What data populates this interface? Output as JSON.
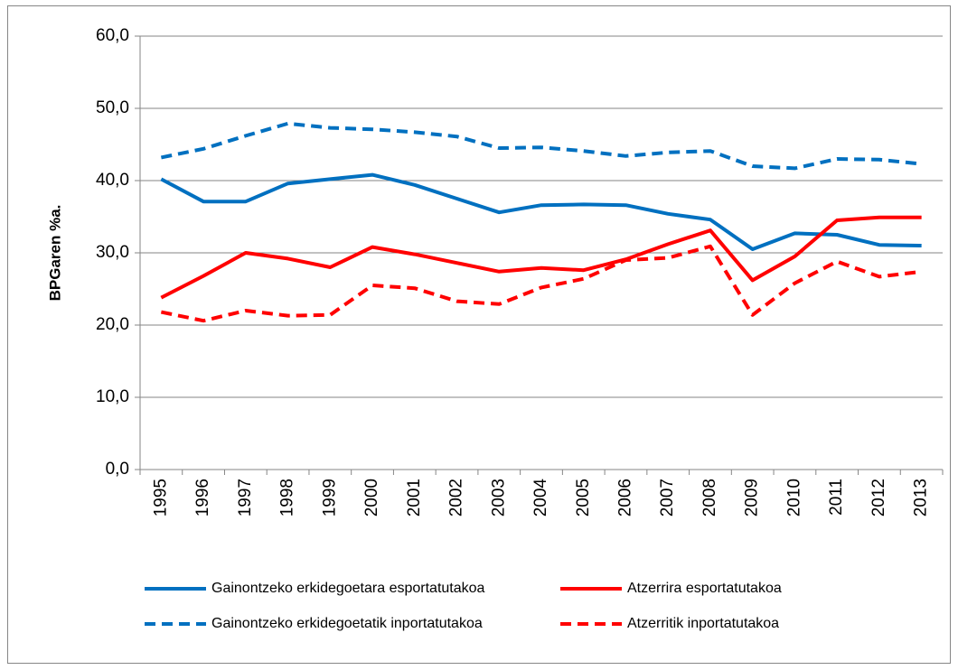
{
  "chart_data": {
    "type": "line",
    "y_label": "BPGaren %a.",
    "categories": [
      "1995",
      "1996",
      "1997",
      "1998",
      "1999",
      "2000",
      "2001",
      "2002",
      "2003",
      "2004",
      "2005",
      "2006",
      "2007",
      "2008",
      "2009",
      "2010",
      "2011",
      "2012",
      "2013"
    ],
    "series": [
      {
        "name": "Gainontzeko erkidegoetara esportatutakoa",
        "color": "#0070c0",
        "line_style": "solid",
        "values": [
          40.2,
          37.1,
          37.1,
          39.6,
          40.2,
          40.8,
          39.4,
          37.5,
          35.6,
          36.6,
          36.7,
          36.6,
          35.4,
          34.6,
          30.5,
          32.7,
          32.5,
          31.1,
          31.0
        ]
      },
      {
        "name": "Atzerrira esportatutakoa",
        "color": "#ff0000",
        "line_style": "solid",
        "values": [
          23.8,
          26.8,
          30.0,
          29.2,
          28.0,
          30.8,
          29.8,
          28.6,
          27.4,
          27.9,
          27.6,
          29.1,
          31.2,
          33.1,
          26.2,
          29.5,
          34.5,
          34.9,
          34.9
        ]
      },
      {
        "name": "Gainontzeko erkidegoetatik inportatutakoa",
        "color": "#0070c0",
        "line_style": "dashed",
        "values": [
          43.2,
          44.4,
          46.2,
          47.9,
          47.3,
          47.1,
          46.7,
          46.1,
          44.5,
          44.6,
          44.1,
          43.4,
          43.9,
          44.1,
          42.0,
          41.7,
          43.0,
          42.9,
          42.3
        ]
      },
      {
        "name": "Atzerritik inportatutakoa",
        "color": "#ff0000",
        "line_style": "dashed",
        "values": [
          21.8,
          20.6,
          22.0,
          21.3,
          21.4,
          25.5,
          25.1,
          23.3,
          22.9,
          25.2,
          26.4,
          29.0,
          29.3,
          30.9,
          21.4,
          25.8,
          28.8,
          26.7,
          27.4
        ]
      }
    ],
    "ylim": [
      0,
      60
    ],
    "yticks": [
      {
        "value": 0,
        "label": "0,0"
      },
      {
        "value": 10,
        "label": "10,0"
      },
      {
        "value": 20,
        "label": "20,0"
      },
      {
        "value": 30,
        "label": "30,0"
      },
      {
        "value": 40,
        "label": "40,0"
      },
      {
        "value": 50,
        "label": "50,0"
      },
      {
        "value": 60,
        "label": "60,0"
      }
    ],
    "grid": true,
    "legend": "bottom"
  }
}
